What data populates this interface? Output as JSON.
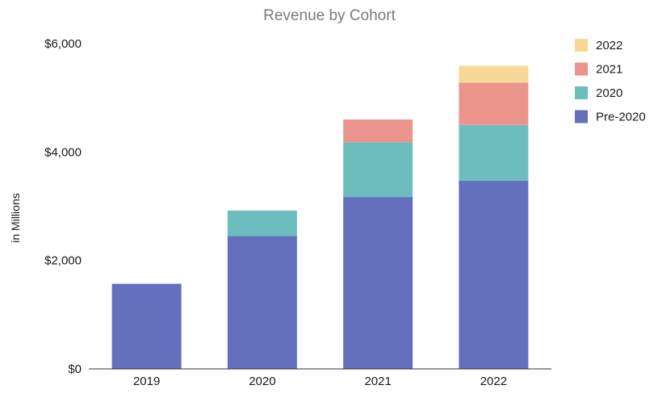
{
  "chart_data": {
    "type": "bar",
    "stacked": true,
    "title": "Revenue by Cohort",
    "xlabel": "",
    "ylabel": "in Millions",
    "ylim": [
      0,
      6000
    ],
    "yticks": [
      0,
      2000,
      4000,
      6000
    ],
    "ytick_labels": [
      "$0",
      "$2,000",
      "$4,000",
      "$6,000"
    ],
    "categories": [
      "2019",
      "2020",
      "2021",
      "2022"
    ],
    "grid": false,
    "legend_position": "right",
    "series": [
      {
        "name": "Pre-2020",
        "color": "#6470bd",
        "values": [
          1570,
          2450,
          3170,
          3470
        ]
      },
      {
        "name": "2020",
        "color": "#6dbdbf",
        "values": [
          0,
          470,
          1010,
          1030
        ]
      },
      {
        "name": "2021",
        "color": "#eb948b",
        "values": [
          0,
          0,
          420,
          780
        ]
      },
      {
        "name": "2022",
        "color": "#f6d996",
        "values": [
          0,
          0,
          0,
          310
        ]
      }
    ],
    "legend_order": [
      "2022",
      "2021",
      "2020",
      "Pre-2020"
    ]
  }
}
